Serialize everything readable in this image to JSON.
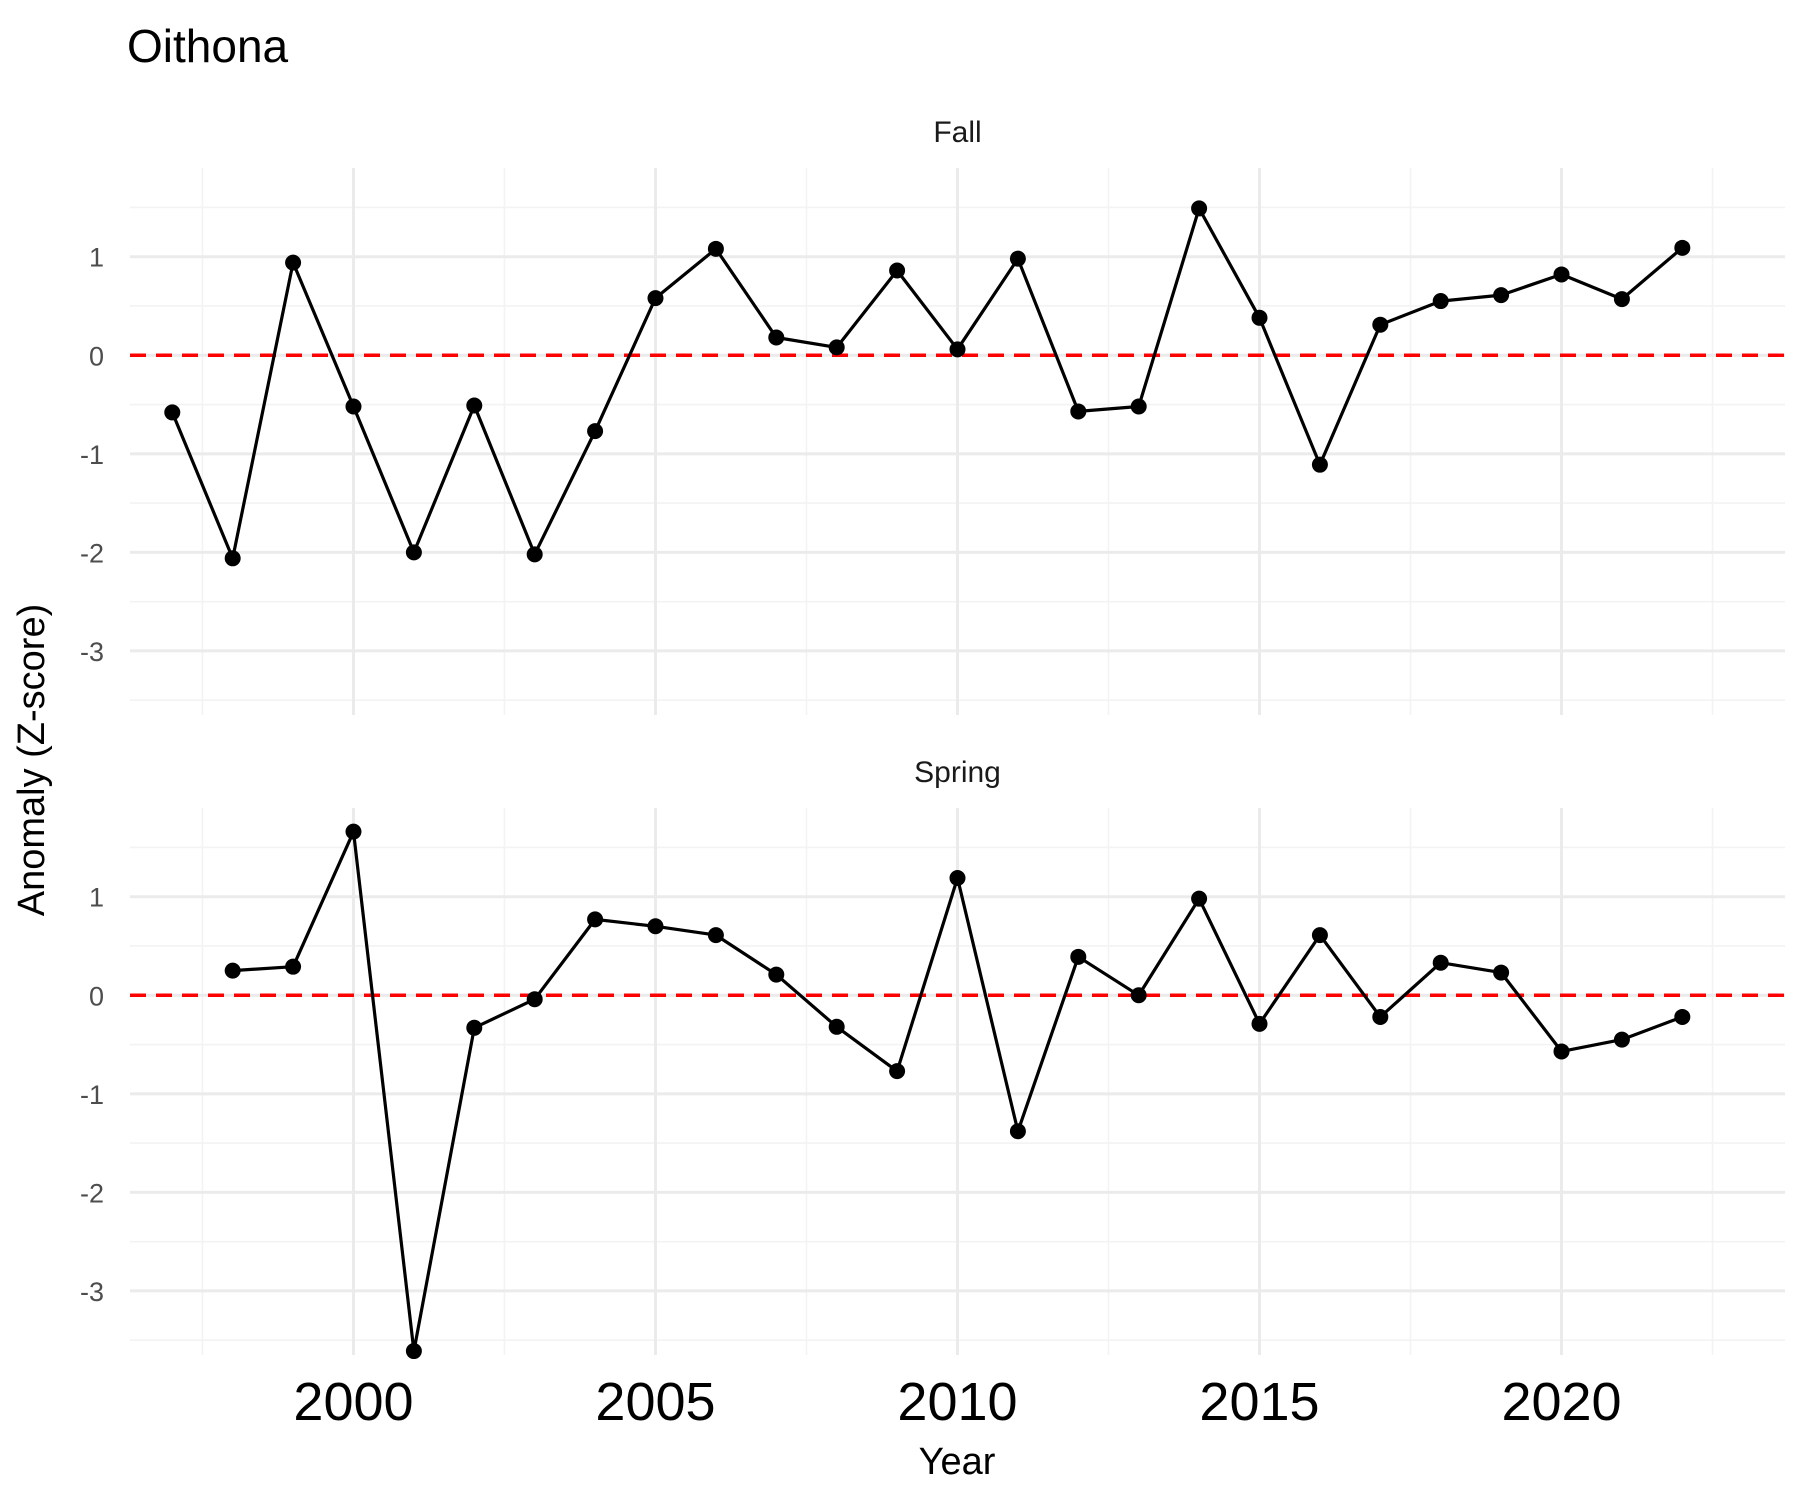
{
  "chart_data": {
    "type": "line",
    "title": "Oithona",
    "xlabel": "Year",
    "ylabel": "Anomaly (Z-score)",
    "x_ticks": [
      "2000",
      "2005",
      "2010",
      "2015",
      "2020"
    ],
    "y_ticks": [
      "1",
      "0",
      "-1",
      "-2",
      "-3"
    ],
    "xlim": [
      1996.3,
      2023.7
    ],
    "ylim": [
      -3.65,
      1.9
    ],
    "grid": true,
    "reference_line": {
      "y": 0,
      "color": "#ff0000",
      "style": "dashed"
    },
    "panels": [
      {
        "name": "Fall",
        "x": [
          1997,
          1998,
          1999,
          2000,
          2001,
          2002,
          2003,
          2004,
          2005,
          2006,
          2007,
          2008,
          2009,
          2010,
          2011,
          2012,
          2013,
          2014,
          2015,
          2016,
          2017,
          2018,
          2019,
          2020,
          2021,
          2022
        ],
        "y": [
          -0.58,
          -2.06,
          0.94,
          -0.52,
          -2.0,
          -0.51,
          -2.02,
          -0.77,
          0.58,
          1.08,
          0.18,
          0.08,
          0.86,
          0.06,
          0.98,
          -0.57,
          -0.52,
          1.49,
          0.38,
          -1.11,
          0.31,
          0.55,
          0.61,
          0.82,
          0.57,
          1.09
        ]
      },
      {
        "name": "Spring",
        "x": [
          1998,
          1999,
          2000,
          2001,
          2002,
          2003,
          2004,
          2005,
          2006,
          2007,
          2008,
          2009,
          2010,
          2011,
          2012,
          2013,
          2014,
          2015,
          2016,
          2017,
          2018,
          2019,
          2020,
          2021,
          2022
        ],
        "y": [
          0.25,
          0.29,
          1.66,
          -3.61,
          -0.33,
          -0.04,
          0.77,
          0.7,
          0.61,
          0.21,
          -0.32,
          -0.77,
          1.19,
          -1.38,
          0.39,
          0.0,
          0.98,
          -0.29,
          0.61,
          -0.22,
          0.33,
          0.23,
          -0.57,
          -0.45,
          -0.22
        ]
      }
    ]
  }
}
